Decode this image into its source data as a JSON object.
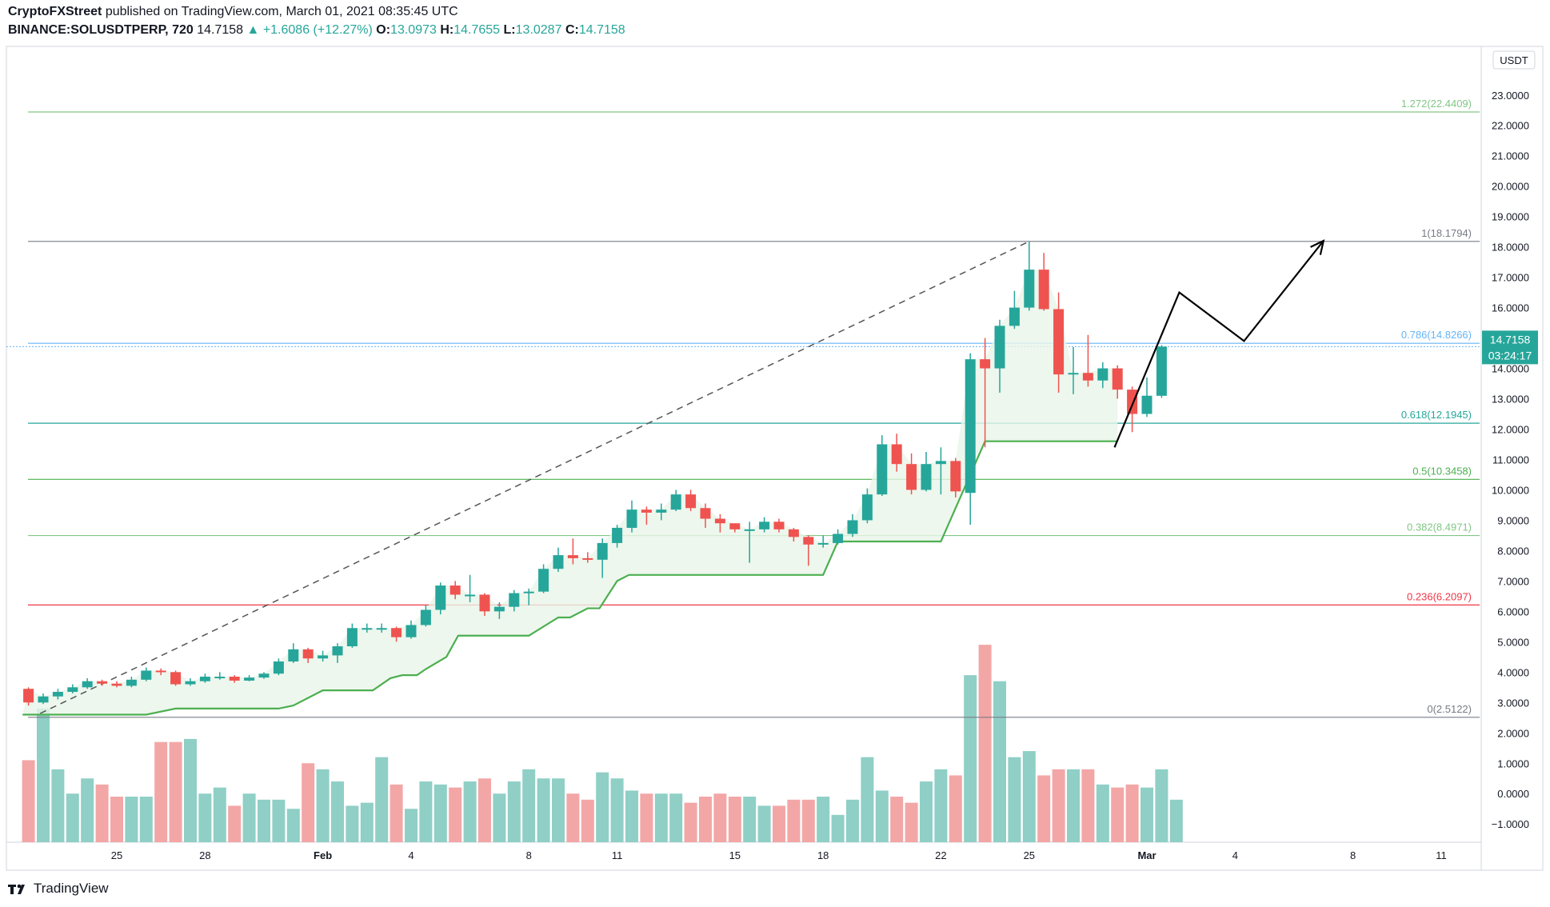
{
  "header": {
    "line1_user": "CryptoFXStreet",
    "line1_rest": "published on TradingView.com, March 01, 2021 08:35:45 UTC",
    "symbol": "BINANCE:SOLUSDTPERP, 720",
    "last": "14.7158",
    "change_arrow": "▲",
    "change": "+1.6086 (+12.27%)",
    "o_label": "O:",
    "o": "13.0973",
    "h_label": "H:",
    "h": "14.7655",
    "l_label": "L:",
    "l": "13.0287",
    "c_label": "C:",
    "c": "14.7158"
  },
  "footer": {
    "brand": "TradingView",
    "icon": "tradingview-logo-icon"
  },
  "colors": {
    "up": "#26a69a",
    "down": "#ef5350",
    "vol_up": "#8fcfc6",
    "vol_down": "#f3a6a6",
    "trend": "#4caf50",
    "trend_fill": "#e8f5e9",
    "fib_1272": "#81c784",
    "fib_1": "#787b86",
    "fib_0786": "#64b5f6",
    "fib_0618": "#26a69a",
    "fib_05": "#4caf50",
    "fib_0382": "#81c784",
    "fib_0236": "#f23645",
    "fib_0": "#787b86",
    "price_tag": "#26a69a"
  },
  "chart_data": {
    "type": "candlestick",
    "currency": "USDT",
    "ylim": [
      -1.6,
      24.6
    ],
    "y_ticks": [
      "23.0000",
      "22.0000",
      "21.0000",
      "20.0000",
      "19.0000",
      "18.0000",
      "17.0000",
      "16.0000",
      "15.0000",
      "14.0000",
      "13.0000",
      "12.0000",
      "11.0000",
      "10.0000",
      "9.0000",
      "8.0000",
      "7.0000",
      "6.0000",
      "5.0000",
      "4.0000",
      "3.0000",
      "2.0000",
      "1.0000",
      "0.0000",
      "−1.0000"
    ],
    "x_ticks": [
      {
        "label": "25",
        "day": 25,
        "bold": false
      },
      {
        "label": "28",
        "day": 28,
        "bold": false
      },
      {
        "label": "Feb",
        "day": 32,
        "bold": true
      },
      {
        "label": "4",
        "day": 35,
        "bold": false
      },
      {
        "label": "8",
        "day": 39,
        "bold": false
      },
      {
        "label": "11",
        "day": 42,
        "bold": false
      },
      {
        "label": "15",
        "day": 46,
        "bold": false
      },
      {
        "label": "18",
        "day": 49,
        "bold": false
      },
      {
        "label": "22",
        "day": 53,
        "bold": false
      },
      {
        "label": "25",
        "day": 56,
        "bold": false
      },
      {
        "label": "Mar",
        "day": 60,
        "bold": true
      },
      {
        "label": "4",
        "day": 63,
        "bold": false
      },
      {
        "label": "8",
        "day": 67,
        "bold": false
      },
      {
        "label": "11",
        "day": 70,
        "bold": false
      }
    ],
    "start_day": 22,
    "candles": [
      [
        3.45,
        3.0,
        3.5,
        2.9
      ],
      [
        3.0,
        3.2,
        3.3,
        2.95
      ],
      [
        3.2,
        3.35,
        3.45,
        3.1
      ],
      [
        3.35,
        3.5,
        3.6,
        3.3
      ],
      [
        3.5,
        3.7,
        3.8,
        3.45
      ],
      [
        3.7,
        3.62,
        3.75,
        3.55
      ],
      [
        3.62,
        3.55,
        3.7,
        3.5
      ],
      [
        3.55,
        3.75,
        3.85,
        3.5
      ],
      [
        3.75,
        4.05,
        4.15,
        3.7
      ],
      [
        4.05,
        4.0,
        4.12,
        3.9
      ],
      [
        4.0,
        3.6,
        4.05,
        3.55
      ],
      [
        3.6,
        3.7,
        3.8,
        3.55
      ],
      [
        3.7,
        3.85,
        3.95,
        3.65
      ],
      [
        3.85,
        3.85,
        4.0,
        3.75
      ],
      [
        3.85,
        3.72,
        3.9,
        3.65
      ],
      [
        3.72,
        3.82,
        3.9,
        3.7
      ],
      [
        3.82,
        3.95,
        4.0,
        3.78
      ],
      [
        3.95,
        4.35,
        4.45,
        3.9
      ],
      [
        4.35,
        4.75,
        4.95,
        4.3
      ],
      [
        4.75,
        4.45,
        4.8,
        4.3
      ],
      [
        4.45,
        4.55,
        4.7,
        4.35
      ],
      [
        4.55,
        4.85,
        4.95,
        4.3
      ],
      [
        4.85,
        5.45,
        5.6,
        4.8
      ],
      [
        5.45,
        5.45,
        5.6,
        5.3
      ],
      [
        5.45,
        5.45,
        5.6,
        5.3
      ],
      [
        5.45,
        5.15,
        5.5,
        5.0
      ],
      [
        5.15,
        5.55,
        5.7,
        5.1
      ],
      [
        5.55,
        6.05,
        6.2,
        5.5
      ],
      [
        6.05,
        6.85,
        6.95,
        5.9
      ],
      [
        6.85,
        6.55,
        7.0,
        6.4
      ],
      [
        6.55,
        6.55,
        7.2,
        6.3
      ],
      [
        6.55,
        6.0,
        6.6,
        5.85
      ],
      [
        6.0,
        6.15,
        6.3,
        5.75
      ],
      [
        6.15,
        6.6,
        6.7,
        6.0
      ],
      [
        6.6,
        6.65,
        6.75,
        6.2
      ],
      [
        6.65,
        7.4,
        7.55,
        6.6
      ],
      [
        7.4,
        7.85,
        8.1,
        7.3
      ],
      [
        7.85,
        7.75,
        8.4,
        7.55
      ],
      [
        7.75,
        7.7,
        7.95,
        7.6
      ],
      [
        7.7,
        8.25,
        8.4,
        7.1
      ],
      [
        8.25,
        8.75,
        8.85,
        8.1
      ],
      [
        8.75,
        9.35,
        9.65,
        8.6
      ],
      [
        9.35,
        9.25,
        9.45,
        8.85
      ],
      [
        9.25,
        9.35,
        9.55,
        9.0
      ],
      [
        9.35,
        9.85,
        10.0,
        9.3
      ],
      [
        9.85,
        9.4,
        10.0,
        9.3
      ],
      [
        9.4,
        9.05,
        9.55,
        8.75
      ],
      [
        9.05,
        8.9,
        9.2,
        8.6
      ],
      [
        8.9,
        8.7,
        8.9,
        8.6
      ],
      [
        8.7,
        8.7,
        8.95,
        7.6
      ],
      [
        8.7,
        8.95,
        9.1,
        8.6
      ],
      [
        8.95,
        8.7,
        9.05,
        8.6
      ],
      [
        8.7,
        8.45,
        8.75,
        8.3
      ],
      [
        8.45,
        8.2,
        8.5,
        7.5
      ],
      [
        8.2,
        8.25,
        8.5,
        8.1
      ],
      [
        8.25,
        8.55,
        8.7,
        8.2
      ],
      [
        8.55,
        9.0,
        9.2,
        8.45
      ],
      [
        9.0,
        9.85,
        10.05,
        8.9
      ],
      [
        9.85,
        11.5,
        11.8,
        9.8
      ],
      [
        11.5,
        10.85,
        11.85,
        10.6
      ],
      [
        10.85,
        10.0,
        11.2,
        9.85
      ],
      [
        10.0,
        10.85,
        11.25,
        9.95
      ],
      [
        10.85,
        10.95,
        11.4,
        9.85
      ],
      [
        10.95,
        9.95,
        11.05,
        9.75
      ],
      [
        9.9,
        14.3,
        14.5,
        8.85
      ],
      [
        14.3,
        14.0,
        15.0,
        11.4
      ],
      [
        14.0,
        15.4,
        15.6,
        13.2
      ],
      [
        15.4,
        16.0,
        16.55,
        15.3
      ],
      [
        16.0,
        17.25,
        18.18,
        15.9
      ],
      [
        17.25,
        15.95,
        17.8,
        15.9
      ],
      [
        15.95,
        13.8,
        16.5,
        13.2
      ],
      [
        13.8,
        13.85,
        14.7,
        13.15
      ],
      [
        13.85,
        13.6,
        15.1,
        13.4
      ],
      [
        13.6,
        14.0,
        14.2,
        13.35
      ],
      [
        14.0,
        13.3,
        14.1,
        13.0
      ],
      [
        13.3,
        12.5,
        13.4,
        11.9
      ],
      [
        12.5,
        13.1,
        13.7,
        12.4
      ],
      [
        13.0973,
        14.7158,
        14.7655,
        13.0287
      ]
    ],
    "volume": [
      1.1,
      2.8,
      0.8,
      0.0,
      0.5,
      0.3,
      -0.1,
      -0.1,
      -0.1,
      1.7,
      1.7,
      1.8,
      0.0,
      0.2,
      -0.4,
      0.0,
      -0.2,
      -0.2,
      -0.5,
      1.0,
      0.8,
      0.4,
      -0.4,
      -0.3,
      1.2,
      0.3,
      -0.5,
      0.4,
      0.3,
      0.2,
      0.4,
      0.5,
      0.0,
      0.4,
      0.8,
      0.5,
      0.5,
      0.0,
      -0.2,
      0.7,
      0.5,
      0.1,
      0.0,
      0.0,
      0.0,
      -0.3,
      -0.1,
      0.0,
      -0.1,
      -0.1,
      -0.4,
      -0.4,
      -0.2,
      -0.2,
      -0.1,
      -0.7,
      -0.2,
      1.2,
      0.1,
      -0.1,
      -0.3,
      0.4,
      0.8,
      0.6,
      3.9,
      4.9,
      3.7,
      1.2,
      1.4,
      0.6,
      0.8,
      0.8,
      0.8,
      0.3,
      0.2,
      0.3,
      0.2,
      0.8,
      -0.2
    ],
    "supertrend": [
      [
        21.8,
        2.6
      ],
      [
        26,
        2.6
      ],
      [
        27,
        2.8
      ],
      [
        30.5,
        2.8
      ],
      [
        31,
        2.9
      ],
      [
        32,
        3.4
      ],
      [
        33.7,
        3.4
      ],
      [
        34.3,
        3.8
      ],
      [
        34.7,
        3.9
      ],
      [
        35.2,
        3.9
      ],
      [
        35.5,
        4.1
      ],
      [
        36.2,
        4.5
      ],
      [
        36.6,
        5.2
      ],
      [
        39,
        5.2
      ],
      [
        40,
        5.8
      ],
      [
        40.4,
        5.8
      ],
      [
        41,
        6.1
      ],
      [
        41.4,
        6.1
      ],
      [
        42,
        7.0
      ],
      [
        42.4,
        7.2
      ],
      [
        49,
        7.2
      ],
      [
        49.5,
        8.3
      ],
      [
        53,
        8.3
      ],
      [
        54.5,
        11.6
      ],
      [
        59,
        11.6
      ]
    ],
    "trendline": [
      [
        22.4,
        2.64
      ],
      [
        56,
        18.18
      ]
    ],
    "projection": [
      [
        58.9,
        11.4
      ],
      [
        61.1,
        16.5
      ],
      [
        63.3,
        14.9
      ],
      [
        66,
        18.2
      ]
    ],
    "fib_levels": [
      {
        "ratio": "1.272",
        "label": "1.272(22.4409)",
        "price": 22.4409,
        "color_key": "fib_1272"
      },
      {
        "ratio": "1",
        "label": "1(18.1794)",
        "price": 18.1794,
        "color_key": "fib_1"
      },
      {
        "ratio": "0.786",
        "label": "0.786(14.8266)",
        "price": 14.8266,
        "color_key": "fib_0786"
      },
      {
        "ratio": "0.618",
        "label": "0.618(12.1945)",
        "price": 12.1945,
        "color_key": "fib_0618"
      },
      {
        "ratio": "0.5",
        "label": "0.5(10.3458)",
        "price": 10.3458,
        "color_key": "fib_05"
      },
      {
        "ratio": "0.382",
        "label": "0.382(8.4971)",
        "price": 8.4971,
        "color_key": "fib_0382"
      },
      {
        "ratio": "0.236",
        "label": "0.236(6.2097)",
        "price": 6.2097,
        "color_key": "fib_0236"
      },
      {
        "ratio": "0",
        "label": "0(2.5122)",
        "price": 2.5122,
        "color_key": "fib_0"
      }
    ],
    "last_price": {
      "value": 14.7158,
      "label": "14.7158",
      "countdown": "03:24:17"
    }
  }
}
